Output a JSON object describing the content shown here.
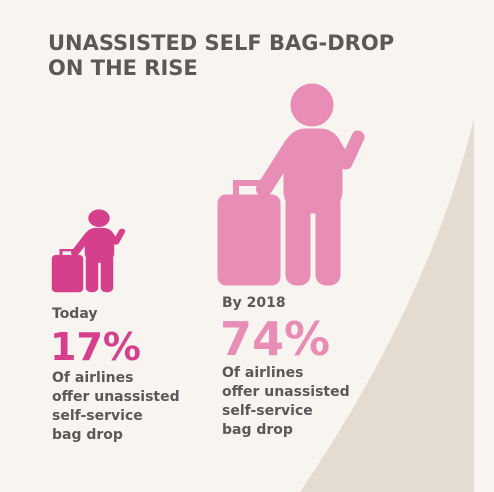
{
  "title_lines": [
    "UNASSISTED SELF BAG-DROP",
    "ON THE RISE"
  ],
  "items": [
    {
      "label": "Today",
      "percent": "17%",
      "description_lines": [
        "Of airlines",
        "offer unassisted",
        "self-service",
        "bag drop"
      ]
    },
    {
      "label": "By 2018",
      "percent": "74%",
      "description_lines": [
        "Of airlines",
        "offer unassisted",
        "self-service",
        "bag drop"
      ]
    }
  ]
}
